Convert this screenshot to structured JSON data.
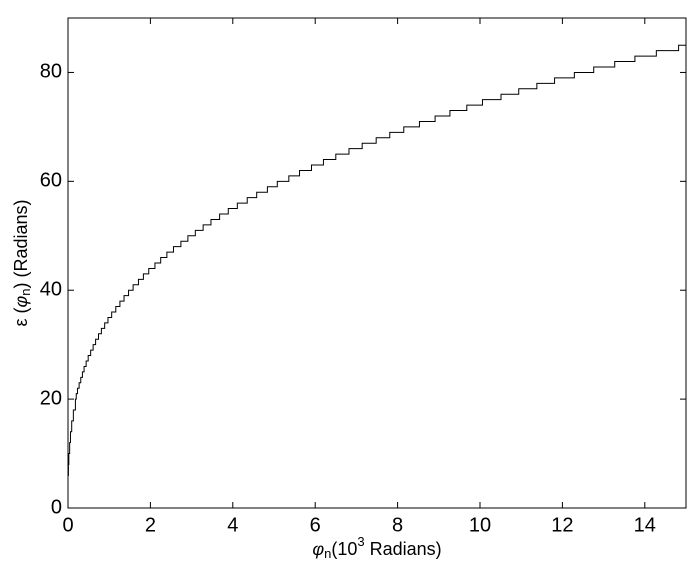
{
  "chart_data": {
    "type": "step",
    "xlabel": [
      "φ",
      "n",
      "(10",
      "3",
      " Radians)"
    ],
    "ylabel": [
      "ε (",
      "φ",
      "n",
      ")  (Radians)"
    ],
    "x": [
      0,
      0.01,
      0.02,
      0.04,
      0.06,
      0.09,
      0.13,
      0.18,
      0.2,
      0.23,
      0.27,
      0.31,
      0.35,
      0.39,
      0.44,
      0.49,
      0.55,
      0.61,
      0.67,
      0.74,
      0.81,
      0.89,
      0.97,
      1.06,
      1.16,
      1.26,
      1.36,
      1.47,
      1.58,
      1.71,
      1.83,
      1.96,
      2.11,
      2.25,
      2.4,
      2.56,
      2.74,
      2.91,
      3.09,
      3.28,
      3.47,
      3.68,
      3.89,
      4.11,
      4.35,
      4.58,
      4.84,
      5.08,
      5.36,
      5.62,
      5.91,
      6.2,
      6.5,
      6.82,
      7.14,
      7.48,
      7.81,
      8.15,
      8.53,
      8.91,
      9.27,
      9.68,
      10.06,
      10.51,
      10.94,
      11.38,
      11.81,
      12.29,
      12.76,
      13.27,
      13.76,
      14.28,
      14.82
    ],
    "values": [
      6,
      8,
      10,
      12,
      14,
      16,
      18,
      20,
      21,
      22,
      23,
      24,
      25,
      26,
      27,
      28,
      29,
      30,
      31,
      32,
      33,
      34,
      35,
      36,
      37,
      38,
      39,
      40,
      41,
      42,
      43,
      44,
      45,
      46,
      47,
      48,
      49,
      50,
      51,
      52,
      53,
      54,
      55,
      56,
      57,
      58,
      59,
      60,
      61,
      62,
      63,
      64,
      65,
      66,
      67,
      68,
      69,
      70,
      71,
      72,
      73,
      74,
      75,
      76,
      77,
      78,
      79,
      80,
      81,
      82,
      83,
      84,
      85
    ],
    "color": "#000000",
    "xlim": [
      0,
      15
    ],
    "xticks": [
      0,
      2,
      4,
      6,
      8,
      10,
      12,
      14
    ],
    "ylim": [
      0,
      90
    ],
    "yticks": [
      0,
      20,
      40,
      60,
      80
    ]
  }
}
